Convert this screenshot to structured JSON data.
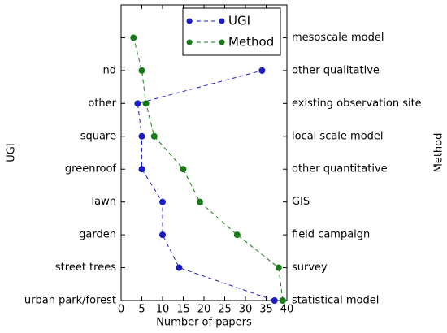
{
  "chart_data": {
    "type": "line",
    "orientation": "horizontal",
    "xlabel": "Number of papers",
    "ylabel": "UGI",
    "y2label": "Method",
    "categories": [
      "urban park/forest",
      "street trees",
      "garden",
      "lawn",
      "greenroof",
      "square",
      "other",
      "nd",
      null
    ],
    "categories2": [
      "statistical model",
      "survey",
      "field campaign",
      "GIS",
      "other quantitative",
      "local scale model",
      "existing observation site",
      "other qualitative",
      "mesoscale model"
    ],
    "series": [
      {
        "name": "UGI",
        "color": "#1c1cc4",
        "axis": "y",
        "values": [
          37,
          14,
          10,
          10,
          5,
          5,
          4,
          34,
          null
        ]
      },
      {
        "name": "Method",
        "color": "#177a17",
        "axis": "y2",
        "values": [
          39,
          38,
          28,
          19,
          15,
          8,
          6,
          5,
          3
        ]
      }
    ],
    "xlim": [
      0,
      40
    ],
    "xticks": [
      0,
      5,
      10,
      15,
      20,
      25,
      30,
      35,
      40
    ],
    "line_style": "dashed",
    "legend": "upper center"
  }
}
